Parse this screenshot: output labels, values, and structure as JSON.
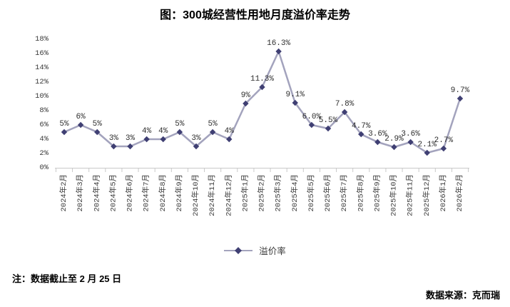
{
  "title": "图：300城经营性用地月度溢价率走势",
  "note": "注：数据截止至 2 月 25 日",
  "source": "数据来源：克而瑞",
  "legend": {
    "label": "溢价率"
  },
  "colors": {
    "line": "#a3a3bd",
    "marker": "#3f3f73",
    "axis": "#c9c9c9",
    "text": "#3a3a3a"
  },
  "chart_data": {
    "type": "line",
    "title": "图：300城经营性用地月度溢价率走势",
    "categories": [
      "2024年2月",
      "2024年3月",
      "2024年4月",
      "2024年5月",
      "2024年6月",
      "2024年7月",
      "2024年8月",
      "2024年9月",
      "2024年10月",
      "2024年11月",
      "2024年12月",
      "2025年1月",
      "2025年2月",
      "2025年3月",
      "2025年4月",
      "2025年5月",
      "2025年6月",
      "2025年7月",
      "2025年8月",
      "2025年9月",
      "2025年10月",
      "2025年11月",
      "2025年12月",
      "2026年1月",
      "2026年2月"
    ],
    "series": [
      {
        "name": "溢价率",
        "values": [
          5,
          6,
          5,
          3,
          3,
          4,
          4,
          5,
          3,
          5,
          4,
          9,
          11.3,
          16.3,
          9.1,
          6.0,
          5.5,
          7.8,
          4.7,
          3.6,
          2.9,
          3.6,
          2.1,
          2.7,
          9.7
        ]
      }
    ],
    "point_labels": [
      "5%",
      "6%",
      "5%",
      "3%",
      "3%",
      "4%",
      "4%",
      "5%",
      "3%",
      "5%",
      "4%",
      "9%",
      "11.3%",
      "16.3%",
      "9.1%",
      "6.0%",
      "5.5%",
      "7.8%",
      "4.7%",
      "3.6%",
      "2.9%",
      "3.6%",
      "2.1%",
      "2.7%",
      "9.7%"
    ],
    "y_ticks": [
      "0%",
      "2%",
      "4%",
      "6%",
      "8%",
      "10%",
      "12%",
      "14%",
      "16%",
      "18%"
    ],
    "ylim": [
      0,
      18
    ],
    "xlabel": "",
    "ylabel": "",
    "grid": false,
    "legend_position": "bottom"
  }
}
